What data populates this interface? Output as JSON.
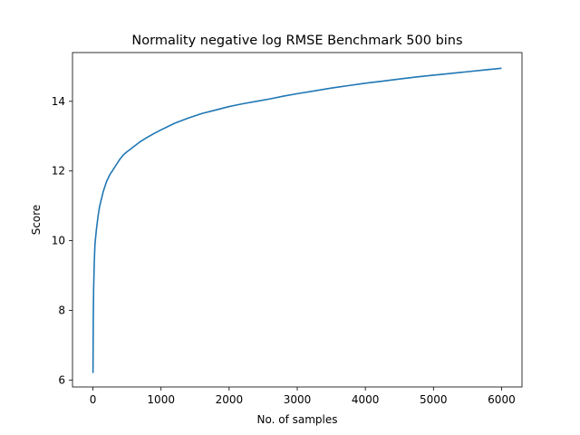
{
  "chart_data": {
    "type": "line",
    "title": "Normality negative log RMSE Benchmark 500 bins",
    "xlabel": "No. of samples",
    "ylabel": "Score",
    "xlim": [
      -300,
      6300
    ],
    "ylim": [
      5.8,
      15.4
    ],
    "xticks": [
      0,
      1000,
      2000,
      3000,
      4000,
      5000,
      6000
    ],
    "yticks": [
      6,
      8,
      10,
      12,
      14
    ],
    "grid": false,
    "line_color": "#1f77b4",
    "series": [
      {
        "x": [
          1,
          5,
          10,
          20,
          30,
          50,
          75,
          100,
          150,
          200,
          250,
          300,
          350,
          400,
          450,
          500,
          600,
          700,
          800,
          900,
          1000,
          1200,
          1400,
          1600,
          1800,
          2000,
          2200,
          2400,
          2600,
          2800,
          3000,
          3250,
          3500,
          3750,
          4000,
          4250,
          4500,
          4750,
          5000,
          5250,
          5500,
          5750,
          6000
        ],
        "y": [
          6.2,
          7.7,
          8.6,
          9.4,
          9.9,
          10.3,
          10.7,
          11.0,
          11.4,
          11.7,
          11.9,
          12.05,
          12.2,
          12.35,
          12.47,
          12.55,
          12.7,
          12.85,
          12.97,
          13.08,
          13.18,
          13.37,
          13.52,
          13.65,
          13.75,
          13.85,
          13.93,
          14.0,
          14.07,
          14.15,
          14.22,
          14.3,
          14.38,
          14.45,
          14.52,
          14.58,
          14.64,
          14.7,
          14.75,
          14.8,
          14.85,
          14.9,
          14.95
        ]
      }
    ]
  }
}
